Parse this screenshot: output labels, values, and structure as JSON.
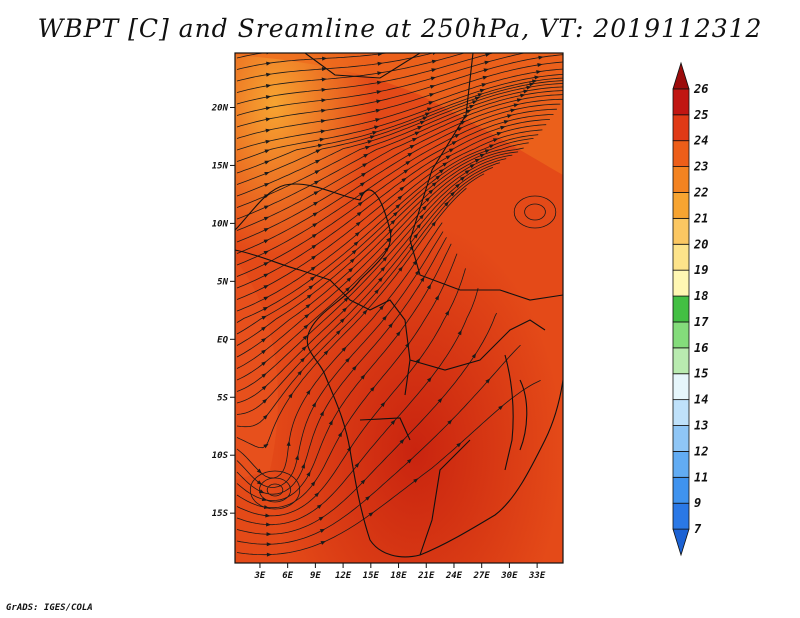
{
  "title": "WBPT [C] and Sreamline at 250hPa, VT: 2019112312",
  "credit": "GrADS: IGES/COLA",
  "map": {
    "lat_labels": [
      "20N",
      "15N",
      "10N",
      "5N",
      "EQ",
      "5S",
      "10S",
      "15S"
    ],
    "lon_labels": [
      "3E",
      "6E",
      "9E",
      "12E",
      "15E",
      "18E",
      "21E",
      "24E",
      "27E",
      "30E",
      "33E"
    ],
    "lat_range": [
      -19.3,
      24.7
    ],
    "lon_range": [
      0.3,
      35.8
    ]
  },
  "colorbar": {
    "labels": [
      "7",
      "9",
      "11",
      "12",
      "13",
      "14",
      "15",
      "16",
      "17",
      "18",
      "19",
      "20",
      "21",
      "22",
      "23",
      "24",
      "25",
      "26"
    ],
    "colors": [
      "#1c62d4",
      "#2a78e6",
      "#3f93ef",
      "#62acf3",
      "#8fc6f6",
      "#bfe1fa",
      "#e6f6fb",
      "#b9ebb0",
      "#84dc7b",
      "#43bf43",
      "#fff7b3",
      "#fde38a",
      "#fbc762",
      "#f7a431",
      "#f38321",
      "#ed5e19",
      "#e03a16",
      "#c11612",
      "#9c0c0c"
    ]
  }
}
